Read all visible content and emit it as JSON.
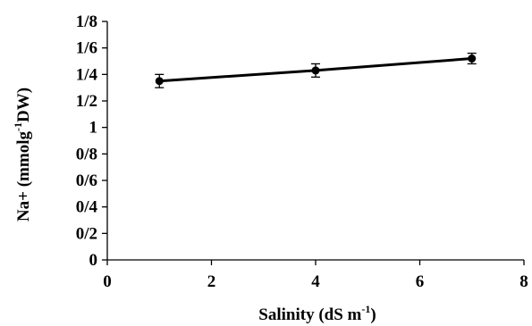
{
  "chart_data": {
    "type": "line",
    "xlabel": "Salinity  (dS m",
    "xlabel_sup": "-1",
    "xlabel_end": ")",
    "ylabel": "Na+ (mmolg",
    "ylabel_sup": "-1",
    "ylabel_end": "DW)",
    "xlim": [
      0,
      8
    ],
    "ylim": [
      0,
      1.8
    ],
    "x_ticks": [
      0,
      2,
      4,
      6,
      8
    ],
    "x_tick_labels": [
      "0",
      "2",
      "4",
      "6",
      "8"
    ],
    "y_ticks": [
      0,
      0.2,
      0.4,
      0.6,
      0.8,
      1.0,
      1.2,
      1.4,
      1.6,
      1.8
    ],
    "y_tick_labels": [
      "0",
      "0/2",
      "0/4",
      "0/6",
      "0/8",
      "1",
      "1/2",
      "1/4",
      "1/6",
      "1/8"
    ],
    "grid": false,
    "series": [
      {
        "x": [
          1,
          4,
          7
        ],
        "values": [
          1.35,
          1.43,
          1.52
        ],
        "error": [
          0.05,
          0.05,
          0.04
        ],
        "color": "#000000"
      }
    ]
  }
}
